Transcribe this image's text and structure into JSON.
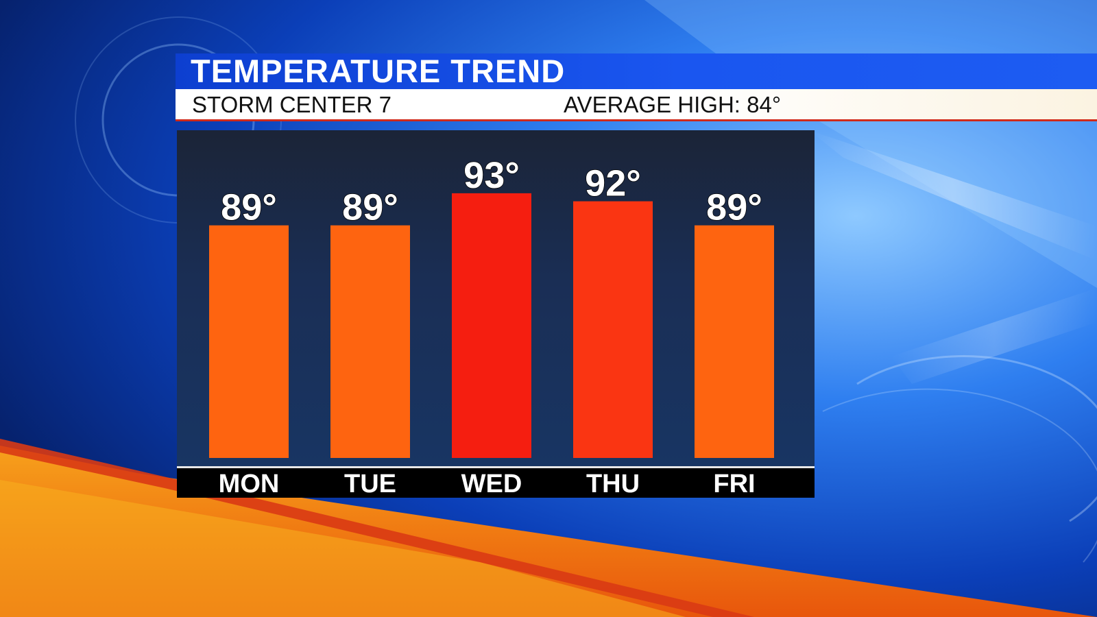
{
  "header": {
    "title": "TEMPERATURE TREND",
    "station": "STORM CENTER 7",
    "average_high_label": "AVERAGE HIGH:",
    "average_high_value": "84°"
  },
  "colors": {
    "bar_normal": "#fe6410",
    "bar_hot": "#f51e10",
    "bar_warm": "#fa3512",
    "title_blue": "#1a56f0",
    "accent_red": "#d12a1a",
    "accent_orange": "#f39a19"
  },
  "chart_data": {
    "type": "bar",
    "title": "TEMPERATURE TREND",
    "categories": [
      "MON",
      "TUE",
      "WED",
      "THU",
      "FRI"
    ],
    "values": [
      89,
      89,
      93,
      92,
      89
    ],
    "labels": [
      "89°",
      "89°",
      "93°",
      "92°",
      "89°"
    ],
    "bar_colors": [
      "#fe6410",
      "#fe6410",
      "#f51e10",
      "#fa3512",
      "#fe6410"
    ],
    "ylim": [
      60,
      100
    ],
    "grid": false,
    "xlabel": "",
    "ylabel": ""
  }
}
